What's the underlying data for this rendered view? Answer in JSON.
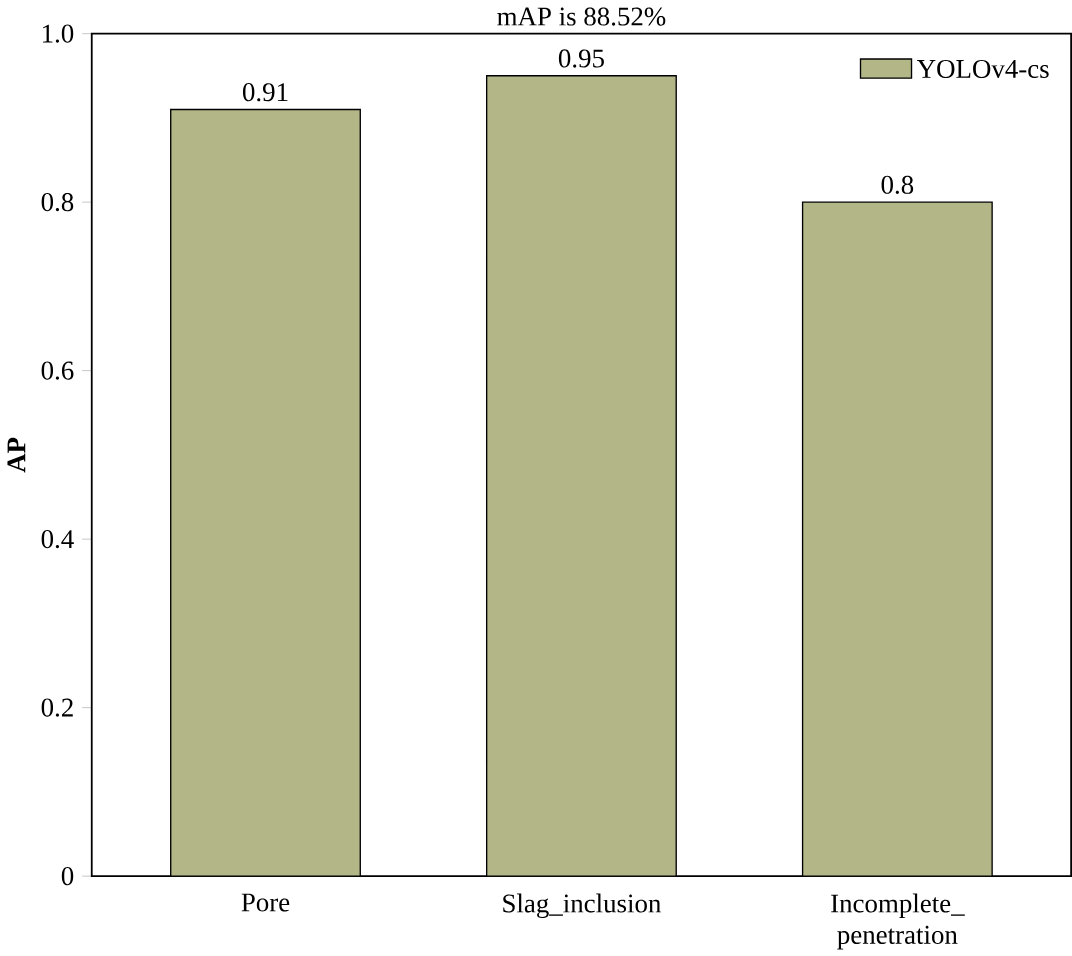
{
  "chart_data": {
    "type": "bar",
    "title": "mAP is 88.52%",
    "ylabel": "AP",
    "categories": [
      "Pore",
      "Slag_inclusion",
      "Incomplete_ penetration"
    ],
    "series": [
      {
        "name": "YOLOv4-cs",
        "color": "#b3b686",
        "values": [
          0.91,
          0.95,
          0.8
        ]
      }
    ],
    "ylim": [
      0,
      1
    ],
    "yticks": [
      {
        "value": 0,
        "label": "0"
      },
      0.2,
      0.4,
      0.6,
      0.8,
      {
        "value": 1,
        "label": "1.0"
      }
    ],
    "data_labels": true,
    "legend": "top right",
    "grid": false
  }
}
